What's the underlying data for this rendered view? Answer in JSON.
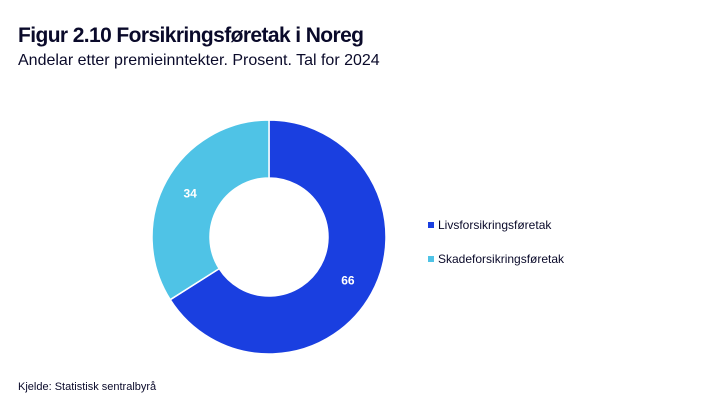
{
  "header": {
    "title": "Figur 2.10 Forsikringsføretak i Noreg",
    "subtitle": "Andelar etter premieinntekter. Prosent. Tal for 2024"
  },
  "source": "Kjelde: Statistisk sentralbyrå",
  "colors": {
    "livs": "#1a3fe0",
    "skade": "#4fc3e6"
  },
  "chart_data": {
    "type": "pie",
    "variant": "donut",
    "categories": [
      "Livsforsikringsføretak",
      "Skadeforsikringsføretak"
    ],
    "values": [
      66,
      34
    ],
    "data_labels": [
      "66",
      "34"
    ],
    "legend_position": "right",
    "colors": [
      "#1a3fe0",
      "#4fc3e6"
    ]
  }
}
